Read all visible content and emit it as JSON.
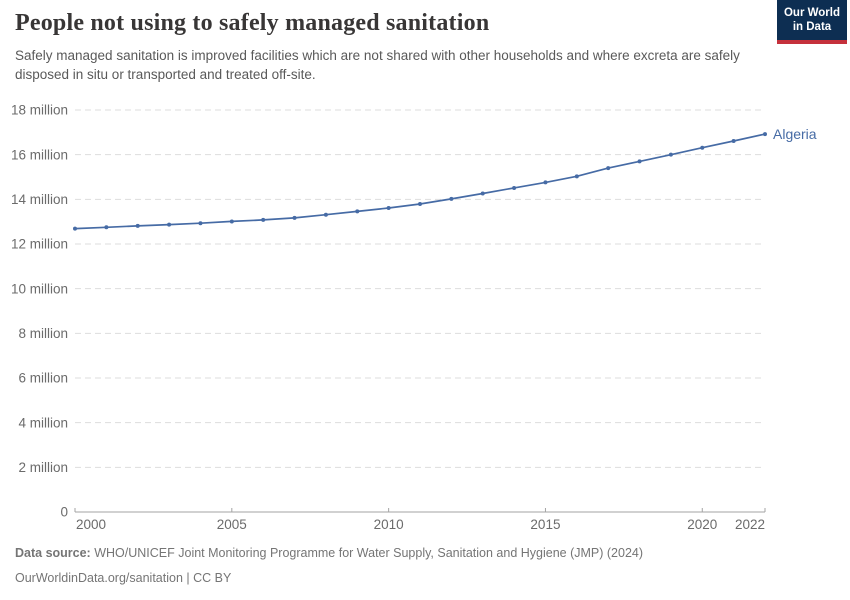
{
  "header": {
    "title": "People not using to safely managed sanitation",
    "subtitle": "Safely managed sanitation is improved facilities which are not shared with other households and where excreta are safely disposed in situ or transported and treated off-site."
  },
  "logo": {
    "line1": "Our World",
    "line2": "in Data",
    "bg_color": "#0d2e52",
    "accent_color": "#c5313c"
  },
  "chart_data": {
    "type": "line",
    "title": "People not using to safely managed sanitation",
    "xlabel": "",
    "ylabel": "",
    "xlim": [
      2000,
      2022
    ],
    "ylim": [
      0,
      18000000
    ],
    "grid": "horizontal-dashed",
    "legend_position": "end-of-line-label",
    "x": [
      2000,
      2001,
      2002,
      2003,
      2004,
      2005,
      2006,
      2007,
      2008,
      2009,
      2010,
      2011,
      2012,
      2013,
      2014,
      2015,
      2016,
      2017,
      2018,
      2019,
      2020,
      2021,
      2022
    ],
    "series": [
      {
        "name": "Algeria",
        "color": "#466ba5",
        "values": [
          12690000,
          12750000,
          12810000,
          12870000,
          12930000,
          13010000,
          13080000,
          13170000,
          13310000,
          13460000,
          13610000,
          13790000,
          14020000,
          14260000,
          14510000,
          14760000,
          15030000,
          15400000,
          15700000,
          16000000,
          16310000,
          16610000,
          16920000
        ]
      }
    ],
    "y_ticks": [
      {
        "value": 0,
        "label": "0"
      },
      {
        "value": 2000000,
        "label": "2 million"
      },
      {
        "value": 4000000,
        "label": "4 million"
      },
      {
        "value": 6000000,
        "label": "6 million"
      },
      {
        "value": 8000000,
        "label": "8 million"
      },
      {
        "value": 10000000,
        "label": "10 million"
      },
      {
        "value": 12000000,
        "label": "12 million"
      },
      {
        "value": 14000000,
        "label": "14 million"
      },
      {
        "value": 16000000,
        "label": "16 million"
      },
      {
        "value": 18000000,
        "label": "18 million"
      }
    ],
    "x_ticks": [
      {
        "value": 2000,
        "label": "2000"
      },
      {
        "value": 2005,
        "label": "2005"
      },
      {
        "value": 2010,
        "label": "2010"
      },
      {
        "value": 2015,
        "label": "2015"
      },
      {
        "value": 2020,
        "label": "2020"
      },
      {
        "value": 2022,
        "label": "2022"
      }
    ],
    "colors": {
      "gridline": "#dddddd",
      "axis": "#a3a3a3",
      "tick_label": "#6b6b6b"
    }
  },
  "footer": {
    "source_label": "Data source:",
    "source_text": "WHO/UNICEF Joint Monitoring Programme for Water Supply, Sanitation and Hygiene (JMP) (2024)",
    "license_text": "OurWorldinData.org/sanitation | CC BY"
  }
}
